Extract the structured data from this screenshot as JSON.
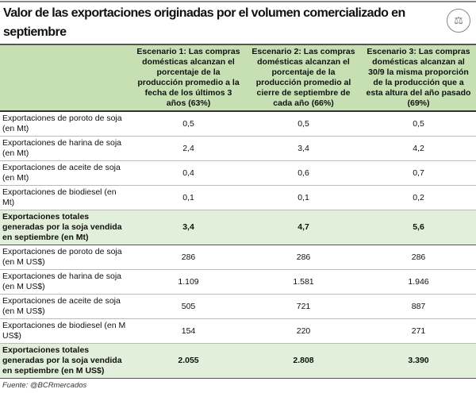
{
  "title": "Valor de las exportaciones originadas por el volumen comercializado en septiembre",
  "logo": "Bolsa de Comercio de Rosario",
  "headers": [
    "",
    "Escenario 1: Las compras domésticas alcanzan el porcentaje de la producción promedio a la fecha de los últimos 3 años (63%)",
    "Escenario 2: Las compras domésticas alcanzan el porcentaje de la producción promedio al cierre de septiembre de cada año (66%)",
    "Escenario 3: Las compras domésticas alcanzan al 30/9 la misma proporción de la producción que a esta altura del año pasado (69%)"
  ],
  "rows": [
    {
      "label": "Exportaciones de poroto de soja (en Mt)",
      "values": [
        "0,5",
        "0,5",
        "0,5"
      ],
      "total": false
    },
    {
      "label": "Exportaciones de harina de soja (en Mt)",
      "values": [
        "2,4",
        "3,4",
        "4,2"
      ],
      "total": false
    },
    {
      "label": "Exportaciones de aceite de soja (en Mt)",
      "values": [
        "0,4",
        "0,6",
        "0,7"
      ],
      "total": false
    },
    {
      "label": "Exportaciones de biodiesel (en Mt)",
      "values": [
        "0,1",
        "0,1",
        "0,2"
      ],
      "total": false
    },
    {
      "label": "Exportaciones totales generadas por la soja vendida en septiembre (en Mt)",
      "values": [
        "3,4",
        "4,7",
        "5,6"
      ],
      "total": true
    },
    {
      "label": "Exportaciones de poroto de soja (en M US$)",
      "values": [
        "286",
        "286",
        "286"
      ],
      "total": false
    },
    {
      "label": "Exportaciones de harina de soja (en M US$)",
      "values": [
        "1.109",
        "1.581",
        "1.946"
      ],
      "total": false
    },
    {
      "label": "Exportaciones de aceite de soja (en M US$)",
      "values": [
        "505",
        "721",
        "887"
      ],
      "total": false
    },
    {
      "label": "Exportaciones de biodiesel (en M US$)",
      "values": [
        "154",
        "220",
        "271"
      ],
      "total": false
    },
    {
      "label": "Exportaciones totales generadas por la soja vendida en septiembre (en M US$)",
      "values": [
        "2.055",
        "2.808",
        "3.390"
      ],
      "total": true
    }
  ],
  "source": "Fuente: @BCRmercados",
  "colors": {
    "header": "#c6e0b4",
    "total_row": "#e2efda"
  }
}
